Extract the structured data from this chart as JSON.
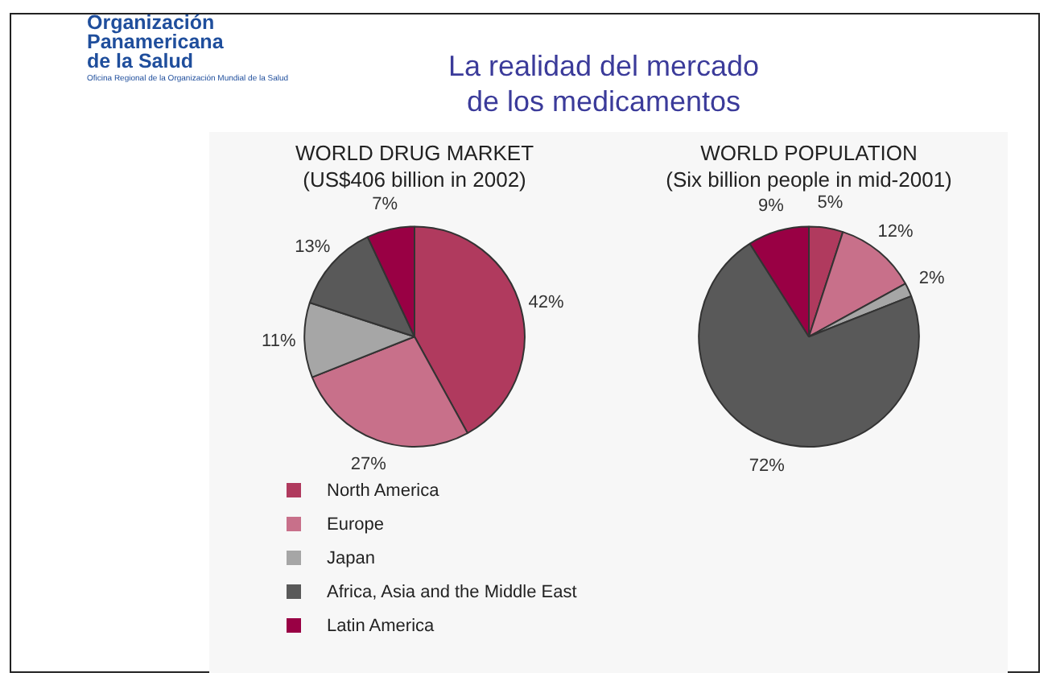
{
  "chart_data": [
    {
      "type": "pie",
      "title": "WORLD DRUG MARKET",
      "subtitle": "(US$406 billion in 2002)",
      "categories": [
        "North America",
        "Europe",
        "Japan",
        "Africa, Asia and the Middle East",
        "Latin America"
      ],
      "values": [
        42,
        27,
        11,
        13,
        7
      ],
      "value_labels": [
        "42%",
        "27%",
        "11%",
        "13%",
        "7%"
      ],
      "colors": [
        "#b03a5e",
        "#c8708a",
        "#a6a6a6",
        "#595959",
        "#990044"
      ],
      "legend": "bottom",
      "annotations": [
        "Organización Panamericana de la Salud",
        "Oficina Regional de la Organización Mundial de la Salud",
        "La realidad del mercado de los medicamentos"
      ]
    },
    {
      "type": "pie",
      "title": "WORLD POPULATION",
      "subtitle": "(Six billion people in mid-2001)",
      "categories": [
        null,
        null,
        null,
        null,
        null
      ],
      "values": [
        5,
        12,
        2,
        72,
        9
      ],
      "value_labels": [
        "5%",
        "12%",
        "2%",
        "72%",
        "9%"
      ],
      "colors": [
        "#b03a5e",
        "#c8708a",
        "#a6a6a6",
        "#595959",
        "#990044"
      ]
    }
  ]
}
